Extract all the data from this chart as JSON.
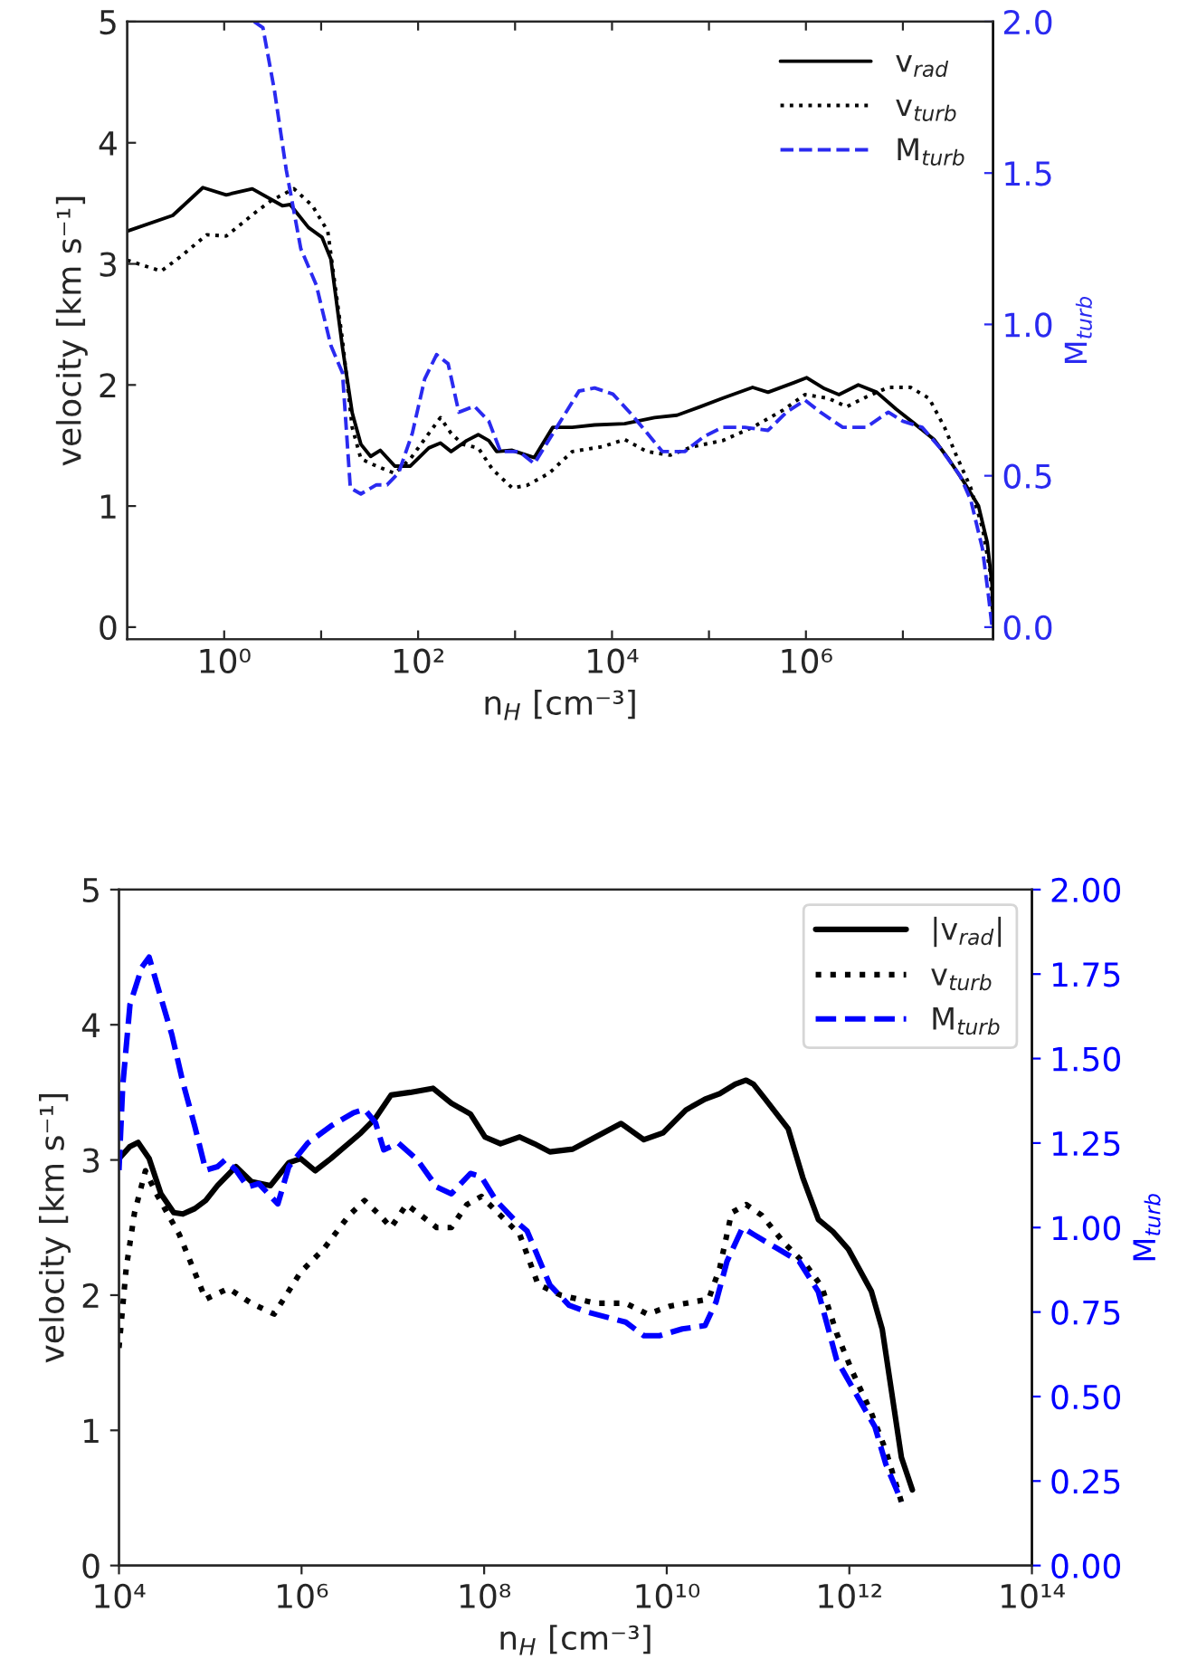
{
  "chart_data": [
    {
      "type": "line",
      "xlabel": "n$_{H}$ [cm⁻³]",
      "ylabel": "velocity [km s⁻¹]",
      "y2label": "M$_{turb}$",
      "log": "x",
      "xlim": [
        0.1,
        85100000.0
      ],
      "ylim": [
        -0.1,
        5
      ],
      "y2lim": [
        -0.04,
        2.0
      ],
      "xticks": [
        {
          "value": 1,
          "label": "10⁰"
        },
        {
          "value": 100,
          "label": "10²"
        },
        {
          "value": 10000,
          "label": "10⁴"
        },
        {
          "value": 1000000,
          "label": "10⁶"
        },
        {
          "value": 10,
          "label": null
        },
        {
          "value": 1000,
          "label": null
        },
        {
          "value": 100000,
          "label": null
        },
        {
          "value": 10000000,
          "label": null
        }
      ],
      "yticks": [
        0,
        1,
        2,
        3,
        4,
        5
      ],
      "y2ticks": [
        {
          "value": 0,
          "label": "0.0"
        },
        {
          "value": 0.5,
          "label": "0.5"
        },
        {
          "value": 1.0,
          "label": "1.0"
        },
        {
          "value": 1.5,
          "label": "1.5"
        },
        {
          "value": 2.0,
          "label": "2.0"
        }
      ],
      "legend": "top right",
      "series": [
        {
          "name": "v$_{rad}$",
          "color": "#000000",
          "line_style": "solid",
          "x": [
            0.1,
            0.295,
            0.603,
            1.05,
            1.95,
            3.98,
            4.79,
            7.41,
            10.2,
            12.6,
            16.6,
            20.9,
            25.7,
            32.4,
            40.7,
            57.5,
            83.2,
            129,
            170,
            219,
            316,
            417,
            537,
            646,
            933,
            1580,
            2450,
            3890,
            6610,
            13500,
            27500,
            46800,
            81300,
            138000,
            282000,
            407000,
            759000,
            1020000.0,
            1550000.0,
            2190000.0,
            3470000.0,
            5370000.0,
            8510000.0,
            13200000.0,
            20900000.0,
            29500000.0,
            41700000.0,
            60300000.0,
            74100000.0,
            83200000.0,
            85100000.0
          ],
          "values": [
            3.27,
            3.4,
            3.63,
            3.57,
            3.62,
            3.48,
            3.49,
            3.3,
            3.22,
            3.04,
            2.31,
            1.77,
            1.51,
            1.41,
            1.46,
            1.33,
            1.33,
            1.48,
            1.52,
            1.45,
            1.54,
            1.59,
            1.54,
            1.45,
            1.46,
            1.4,
            1.65,
            1.65,
            1.67,
            1.68,
            1.73,
            1.75,
            1.82,
            1.89,
            1.98,
            1.94,
            2.02,
            2.06,
            1.97,
            1.92,
            2.0,
            1.94,
            1.8,
            1.68,
            1.55,
            1.39,
            1.21,
            1.0,
            0.7,
            0.35,
            0.05
          ]
        },
        {
          "name": "v$_{turb}$",
          "color": "#000000",
          "line_style": "dotted",
          "x": [
            0.1,
            0.224,
            0.355,
            0.661,
            1.05,
            2.14,
            3.02,
            5.25,
            8.13,
            11.7,
            16.6,
            20.9,
            25.7,
            37.2,
            57.5,
            83.2,
            129,
            170,
            219,
            288,
            417,
            589,
            933,
            1320,
            2240,
            3890,
            7940,
            13500,
            22900,
            39800,
            67600,
            138000,
            282000,
            575000,
            977000,
            1700000.0,
            2630000.0,
            4170000.0,
            7080000.0,
            12000000.0,
            18600000.0,
            26900000.0,
            35500000.0,
            50100000.0,
            66100000.0,
            79400000.0,
            85100000.0
          ],
          "values": [
            3.03,
            2.94,
            3.06,
            3.24,
            3.23,
            3.43,
            3.52,
            3.62,
            3.48,
            3.27,
            2.37,
            1.65,
            1.39,
            1.33,
            1.27,
            1.39,
            1.6,
            1.73,
            1.6,
            1.51,
            1.48,
            1.3,
            1.15,
            1.17,
            1.27,
            1.45,
            1.49,
            1.55,
            1.45,
            1.42,
            1.49,
            1.54,
            1.65,
            1.79,
            1.92,
            1.89,
            1.82,
            1.9,
            1.98,
            1.98,
            1.89,
            1.65,
            1.42,
            1.15,
            0.82,
            0.46,
            0.07
          ]
        },
        {
          "name": "M$_{turb}$",
          "color": "#2a2af0",
          "line_style": "dashed",
          "axis": "y2",
          "x": [
            2.04,
            2.51,
            3.31,
            4.37,
            6.17,
            8.91,
            12.6,
            16.6,
            20,
            25.7,
            37.2,
            47.9,
            63.1,
            87.1,
            117,
            155,
            204,
            263,
            380,
            537,
            708,
            1100,
            1580,
            2690,
            4570,
            6610,
            10200,
            16200,
            33100,
            56200,
            89100,
            138000,
            234000,
            407000,
            631000,
            977000,
            1410000.0,
            2400000.0,
            4170000.0,
            7080000.0,
            10000000.0,
            15800000.0,
            24500000.0,
            38900000.0,
            50100000.0,
            66100000.0,
            75900000.0,
            83200000.0
          ],
          "values": [
            2.0,
            1.98,
            1.77,
            1.51,
            1.25,
            1.13,
            0.93,
            0.84,
            0.46,
            0.44,
            0.47,
            0.47,
            0.51,
            0.64,
            0.82,
            0.9,
            0.87,
            0.71,
            0.73,
            0.68,
            0.58,
            0.58,
            0.54,
            0.66,
            0.78,
            0.79,
            0.77,
            0.7,
            0.58,
            0.58,
            0.63,
            0.66,
            0.66,
            0.65,
            0.71,
            0.75,
            0.71,
            0.66,
            0.66,
            0.71,
            0.68,
            0.66,
            0.59,
            0.5,
            0.42,
            0.26,
            0.11,
            0.0
          ]
        }
      ]
    },
    {
      "type": "line",
      "xlabel": "n$_{H}$ [cm⁻³]",
      "ylabel": "velocity [km s⁻¹]",
      "y2label": "M$_{turb}$",
      "log": "x",
      "xlim": [
        10000.0,
        100000000000000.0
      ],
      "ylim": [
        0,
        5
      ],
      "y2lim": [
        0,
        2.0
      ],
      "xticks": [
        {
          "value": 10000.0,
          "label": "10⁴"
        },
        {
          "value": 1000000.0,
          "label": "10⁶"
        },
        {
          "value": 100000000.0,
          "label": "10⁸"
        },
        {
          "value": 10000000000.0,
          "label": "10¹⁰"
        },
        {
          "value": 1000000000000.0,
          "label": "10¹²"
        },
        {
          "value": 100000000000000.0,
          "label": "10¹⁴"
        }
      ],
      "yticks": [
        0,
        1,
        2,
        3,
        4,
        5
      ],
      "y2ticks": [
        {
          "value": 0,
          "label": "0.00"
        },
        {
          "value": 0.25,
          "label": "0.25"
        },
        {
          "value": 0.5,
          "label": "0.50"
        },
        {
          "value": 0.75,
          "label": "0.75"
        },
        {
          "value": 1.0,
          "label": "1.00"
        },
        {
          "value": 1.25,
          "label": "1.25"
        },
        {
          "value": 1.5,
          "label": "1.50"
        },
        {
          "value": 1.75,
          "label": "1.75"
        },
        {
          "value": 2.0,
          "label": "2.00"
        }
      ],
      "legend": "top right",
      "series": [
        {
          "name": "|v$_{rad}$|",
          "color": "#000000",
          "line_style": "solid",
          "x": [
            10000.0,
            13200.0,
            16200.0,
            21400.0,
            28800.0,
            39800.0,
            50100.0,
            67600.0,
            89100.0,
            120000.0,
            191000.0,
            282000.0,
            457000.0,
            724000.0,
            977000.0,
            1410000.0,
            2090000.0,
            4470000.0,
            6460000.0,
            9550000.0,
            15500000.0,
            27500000.0,
            43700000.0,
            70800000.0,
            102000000.0,
            151000000.0,
            245000000.0,
            355000000.0,
            525000000.0,
            933000000.0,
            1660000000.0,
            3160000000.0,
            5620000000.0,
            9120000000.0,
            16200000000.0,
            26300000000.0,
            38000000000.0,
            56200000000.0,
            74100000000.0,
            89100000000.0,
            120000000000.0,
            214000000000.0,
            309000000000.0,
            457000000000.0,
            661000000000.0,
            977000000000.0,
            1740000000000.0,
            2290000000000.0,
            3720000000000.0,
            4900000000000.0
          ],
          "values": [
            3.01,
            3.1,
            3.13,
            3.01,
            2.75,
            2.61,
            2.6,
            2.64,
            2.7,
            2.81,
            2.95,
            2.84,
            2.81,
            2.98,
            3.01,
            2.92,
            3.01,
            3.2,
            3.31,
            3.48,
            3.5,
            3.53,
            3.42,
            3.34,
            3.17,
            3.12,
            3.17,
            3.12,
            3.06,
            3.08,
            3.17,
            3.27,
            3.15,
            3.2,
            3.37,
            3.45,
            3.49,
            3.56,
            3.59,
            3.56,
            3.45,
            3.23,
            2.87,
            2.56,
            2.47,
            2.34,
            2.03,
            1.75,
            0.8,
            0.56
          ]
        },
        {
          "name": "v$_{turb}$",
          "color": "#000000",
          "line_style": "dotted",
          "x": [
            10000.0,
            12000.0,
            14800.0,
            19500.0,
            25700.0,
            45700.0,
            89100.0,
            158000.0,
            282000.0,
            501000.0,
            977000.0,
            1740000.0,
            3310000.0,
            4900000.0,
            7240000.0,
            9550000.0,
            14100000.0,
            20400000.0,
            30200000.0,
            43700000.0,
            64600000.0,
            93300000.0,
            151000000.0,
            245000000.0,
            389000000.0,
            692000000.0,
            1660000000.0,
            3550000000.0,
            6170000000.0,
            11000000000.0,
            28800000000.0,
            38000000000.0,
            51300000000.0,
            74100000000.0,
            110000000000.0,
            191000000000.0,
            339000000000.0,
            501000000000.0,
            724000000000.0,
            1070000000000.0,
            1740000000000.0,
            2510000000000.0,
            3720000000000.0
          ],
          "values": [
            1.61,
            2.2,
            2.61,
            2.92,
            2.75,
            2.45,
            1.97,
            2.05,
            1.94,
            1.86,
            2.17,
            2.34,
            2.59,
            2.7,
            2.59,
            2.5,
            2.67,
            2.59,
            2.5,
            2.5,
            2.67,
            2.73,
            2.59,
            2.45,
            2.08,
            2.0,
            1.94,
            1.94,
            1.86,
            1.92,
            1.97,
            2.2,
            2.61,
            2.67,
            2.59,
            2.39,
            2.22,
            2.06,
            1.72,
            1.44,
            1.13,
            0.85,
            0.47
          ]
        },
        {
          "name": "M$_{turb}$",
          "color": "#0000ff",
          "line_style": "dashed",
          "axis": "y2",
          "x": [
            10000.0,
            11000.0,
            13200.0,
            17800.0,
            21400.0,
            28800.0,
            38000.0,
            50100.0,
            67600.0,
            89100.0,
            120000.0,
            145000.0,
            191000.0,
            257000.0,
            339000.0,
            550000.0,
            724000.0,
            1170000.0,
            2090000.0,
            3720000.0,
            4900000.0,
            6460000.0,
            7940000.0,
            11500000.0,
            18600000.0,
            30200000.0,
            43700000.0,
            70800000.0,
            93300000.0,
            135000000.0,
            219000000.0,
            295000000.0,
            525000000.0,
            851000000.0,
            1350000000.0,
            3550000000.0,
            5620000000.0,
            8320000000.0,
            14800000000.0,
            26300000000.0,
            34700000000.0,
            45700000000.0,
            67600000000.0,
            89100000000.0,
            158000000000.0,
            282000000000.0,
            457000000000.0,
            724000000000.0,
            1290000000000.0,
            1910000000000.0,
            2510000000000.0,
            3720000000000.0
          ],
          "values": [
            1.17,
            1.42,
            1.66,
            1.77,
            1.8,
            1.68,
            1.57,
            1.43,
            1.3,
            1.17,
            1.18,
            1.2,
            1.17,
            1.12,
            1.13,
            1.07,
            1.18,
            1.25,
            1.3,
            1.34,
            1.35,
            1.31,
            1.23,
            1.25,
            1.2,
            1.12,
            1.1,
            1.16,
            1.15,
            1.08,
            1.02,
            0.99,
            0.83,
            0.77,
            0.75,
            0.72,
            0.68,
            0.68,
            0.7,
            0.71,
            0.78,
            0.9,
            1.0,
            0.98,
            0.94,
            0.9,
            0.81,
            0.61,
            0.49,
            0.41,
            0.3,
            0.19
          ]
        }
      ]
    }
  ]
}
